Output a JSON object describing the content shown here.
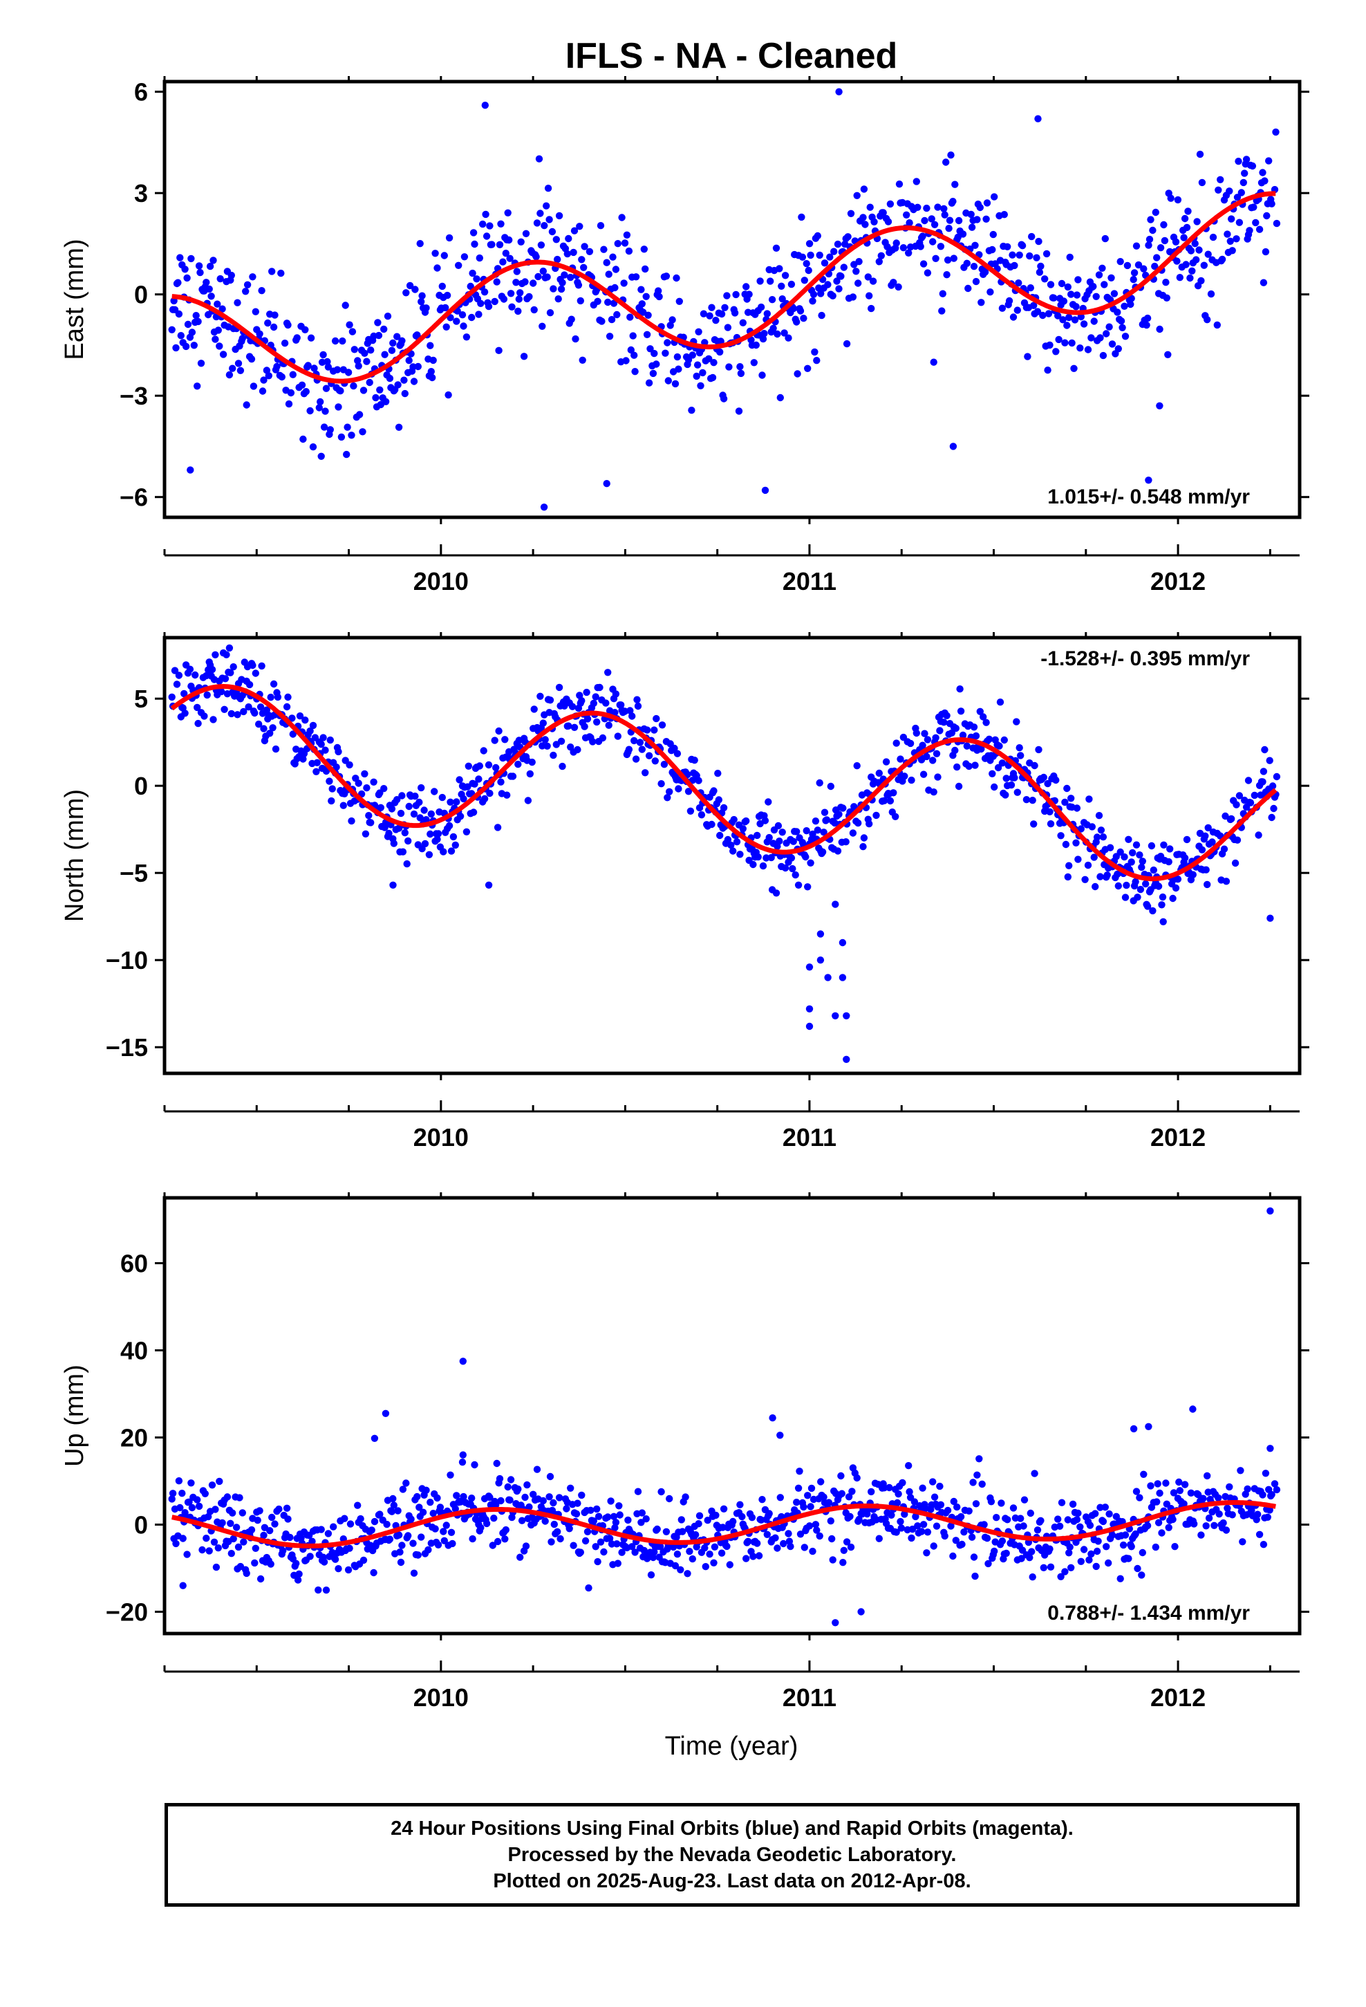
{
  "chart_data": [
    {
      "type": "scatter",
      "panel": "east",
      "title": "IFLS  - NA - Cleaned",
      "ylabel": "East (mm)",
      "xlabel": "",
      "xlim": [
        2009.25,
        2012.33
      ],
      "ylim": [
        -6.6,
        6.3
      ],
      "yticks": [
        6,
        3,
        0,
        -3,
        -6
      ],
      "ytick_labels": [
        "6",
        "3",
        "0",
        "−3",
        "−6"
      ],
      "xticks": [
        2010,
        2011,
        2012
      ],
      "xtick_labels": [
        "2010",
        "2011",
        "2012"
      ],
      "rate_text": "1.015+/- 0.548 mm/yr",
      "rate_position": "bottom-right",
      "grid": false,
      "series": [
        {
          "kind": "points",
          "color": "#0000ff",
          "amplitude": 1.5,
          "phase": 1.6,
          "noise": 0.95,
          "outliers": [
            [
              2009.32,
              -5.2
            ],
            [
              2010.12,
              5.6
            ],
            [
              2010.28,
              -6.3
            ],
            [
              2010.45,
              -5.6
            ],
            [
              2010.88,
              -5.8
            ],
            [
              2011.08,
              6.0
            ],
            [
              2011.39,
              -4.5
            ],
            [
              2011.62,
              5.2
            ],
            [
              2011.92,
              -5.5
            ],
            [
              2011.95,
              -3.3
            ]
          ]
        },
        {
          "kind": "fit",
          "color": "#ff0000",
          "amplitude": 1.5,
          "phase": 1.6
        }
      ]
    },
    {
      "type": "scatter",
      "panel": "north",
      "ylabel": "North (mm)",
      "xlabel": "",
      "xlim": [
        2009.25,
        2012.33
      ],
      "ylim": [
        -16.5,
        8.5
      ],
      "yticks": [
        5,
        0,
        -5,
        -10,
        -15
      ],
      "ytick_labels": [
        "5",
        "0",
        "−5",
        "−10",
        "−15"
      ],
      "xticks": [
        2010,
        2011,
        2012
      ],
      "xtick_labels": [
        "2010",
        "2011",
        "2012"
      ],
      "rate_text": "-1.528+/- 0.395 mm/yr",
      "rate_position": "top-right",
      "grid": false,
      "series": [
        {
          "kind": "points",
          "color": "#0000ff",
          "amplitude": 3.6,
          "phase": 0.5,
          "noise": 1.0,
          "outliers": [
            [
              2011.0,
              -10.4
            ],
            [
              2011.0,
              -12.8
            ],
            [
              2011.0,
              -13.8
            ],
            [
              2011.03,
              -8.5
            ],
            [
              2011.03,
              -10.0
            ],
            [
              2011.05,
              -11.0
            ],
            [
              2011.07,
              -6.8
            ],
            [
              2011.07,
              -13.2
            ],
            [
              2011.09,
              -9.0
            ],
            [
              2011.09,
              -11.0
            ],
            [
              2011.1,
              -15.7
            ],
            [
              2011.1,
              -13.2
            ],
            [
              2009.87,
              -5.7
            ],
            [
              2010.13,
              -5.7
            ],
            [
              2011.96,
              -7.8
            ],
            [
              2012.25,
              -7.6
            ]
          ]
        },
        {
          "kind": "fit",
          "color": "#ff0000",
          "amplitude": 3.6,
          "phase": 0.5
        }
      ]
    },
    {
      "type": "scatter",
      "panel": "up",
      "ylabel": "Up (mm)",
      "xlabel": "Time (year)",
      "xlim": [
        2009.25,
        2012.33
      ],
      "ylim": [
        -25,
        75
      ],
      "yticks": [
        60,
        40,
        20,
        0,
        -20
      ],
      "ytick_labels": [
        "60",
        "40",
        "20",
        "0",
        "−20"
      ],
      "xticks": [
        2010,
        2011,
        2012
      ],
      "xtick_labels": [
        "2010",
        "2011",
        "2012"
      ],
      "rate_text": "0.788+/- 1.434 mm/yr",
      "rate_position": "bottom-right",
      "grid": false,
      "series": [
        {
          "kind": "points",
          "color": "#0000ff",
          "amplitude": 4.0,
          "phase": 2.2,
          "noise": 4.2,
          "outliers": [
            [
              2012.25,
              72.0
            ],
            [
              2010.06,
              37.5
            ],
            [
              2009.85,
              25.5
            ],
            [
              2009.82,
              19.8
            ],
            [
              2010.06,
              16.0
            ],
            [
              2010.9,
              24.5
            ],
            [
              2010.92,
              20.5
            ],
            [
              2011.88,
              22.0
            ],
            [
              2011.92,
              22.5
            ],
            [
              2012.04,
              26.5
            ],
            [
              2012.25,
              17.5
            ],
            [
              2011.07,
              -22.5
            ],
            [
              2011.14,
              -20.0
            ],
            [
              2009.3,
              -14.0
            ]
          ]
        },
        {
          "kind": "fit",
          "color": "#ff0000",
          "amplitude": 4.0,
          "phase": 2.2
        }
      ]
    }
  ],
  "footer": {
    "line1": "24 Hour Positions Using Final Orbits (blue) and Rapid Orbits (magenta).",
    "line2": "Processed by the Nevada Geodetic Laboratory.",
    "line3": "Plotted on 2025-Aug-23. Last data on 2012-Apr-08."
  }
}
